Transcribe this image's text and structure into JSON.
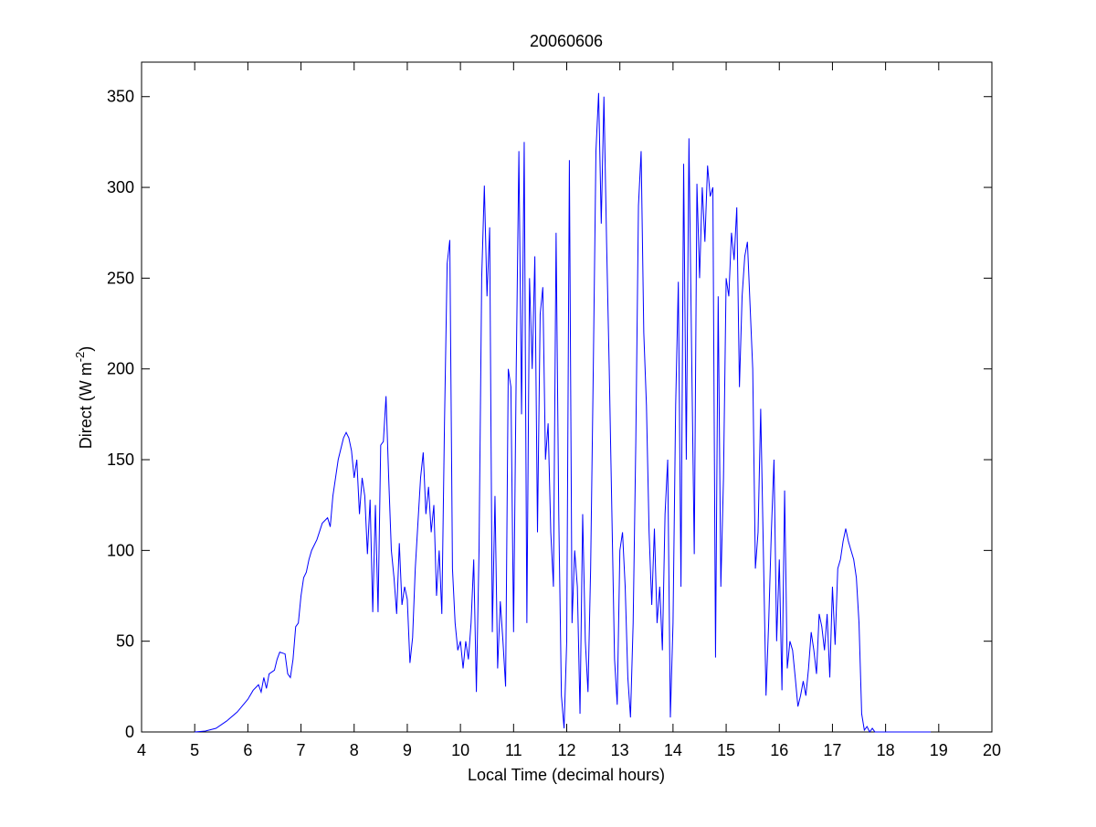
{
  "chart_data": {
    "type": "line",
    "title": "20060606",
    "xlabel": "Local Time (decimal hours)",
    "ylabel": {
      "text": "Direct (W m",
      "superscript": "-2",
      "suffix": ")"
    },
    "color": "#0000ff",
    "xlim": [
      4,
      20
    ],
    "xticks": [
      4,
      5,
      6,
      7,
      8,
      9,
      10,
      11,
      12,
      13,
      14,
      15,
      16,
      17,
      18,
      19,
      20
    ],
    "ylim": [
      0,
      369
    ],
    "yticks": [
      0,
      50,
      100,
      150,
      200,
      250,
      300,
      350
    ],
    "x": [
      5.0,
      5.2,
      5.4,
      5.6,
      5.8,
      6.0,
      6.1,
      6.2,
      6.25,
      6.3,
      6.35,
      6.4,
      6.5,
      6.55,
      6.6,
      6.7,
      6.75,
      6.8,
      6.85,
      6.9,
      6.95,
      7.0,
      7.05,
      7.1,
      7.15,
      7.2,
      7.3,
      7.4,
      7.5,
      7.55,
      7.6,
      7.7,
      7.8,
      7.85,
      7.9,
      7.95,
      8.0,
      8.05,
      8.1,
      8.15,
      8.2,
      8.25,
      8.3,
      8.35,
      8.4,
      8.45,
      8.5,
      8.55,
      8.6,
      8.65,
      8.7,
      8.75,
      8.8,
      8.85,
      8.9,
      8.95,
      9.0,
      9.05,
      9.1,
      9.15,
      9.2,
      9.25,
      9.3,
      9.35,
      9.4,
      9.45,
      9.5,
      9.55,
      9.6,
      9.65,
      9.7,
      9.75,
      9.8,
      9.85,
      9.9,
      9.95,
      10.0,
      10.05,
      10.1,
      10.15,
      10.2,
      10.25,
      10.3,
      10.35,
      10.4,
      10.45,
      10.5,
      10.55,
      10.6,
      10.65,
      10.7,
      10.75,
      10.8,
      10.85,
      10.9,
      10.95,
      11.0,
      11.05,
      11.1,
      11.15,
      11.2,
      11.25,
      11.3,
      11.35,
      11.4,
      11.45,
      11.5,
      11.55,
      11.6,
      11.65,
      11.7,
      11.75,
      11.8,
      11.85,
      11.9,
      11.95,
      12.0,
      12.05,
      12.1,
      12.15,
      12.2,
      12.25,
      12.3,
      12.35,
      12.4,
      12.45,
      12.5,
      12.55,
      12.6,
      12.65,
      12.7,
      12.75,
      12.8,
      12.85,
      12.9,
      12.95,
      13.0,
      13.05,
      13.1,
      13.15,
      13.2,
      13.25,
      13.3,
      13.35,
      13.4,
      13.45,
      13.5,
      13.55,
      13.6,
      13.65,
      13.7,
      13.75,
      13.8,
      13.85,
      13.9,
      13.95,
      14.0,
      14.05,
      14.1,
      14.15,
      14.2,
      14.25,
      14.3,
      14.35,
      14.4,
      14.45,
      14.5,
      14.55,
      14.6,
      14.65,
      14.7,
      14.75,
      14.8,
      14.85,
      14.9,
      14.95,
      15.0,
      15.05,
      15.1,
      15.15,
      15.2,
      15.25,
      15.3,
      15.35,
      15.4,
      15.45,
      15.5,
      15.55,
      15.6,
      15.65,
      15.7,
      15.75,
      15.8,
      15.85,
      15.9,
      15.95,
      16.0,
      16.05,
      16.1,
      16.15,
      16.2,
      16.25,
      16.3,
      16.35,
      16.4,
      16.45,
      16.5,
      16.55,
      16.6,
      16.65,
      16.7,
      16.75,
      16.8,
      16.85,
      16.9,
      16.95,
      17.0,
      17.05,
      17.1,
      17.15,
      17.2,
      17.25,
      17.3,
      17.35,
      17.4,
      17.45,
      17.5,
      17.55,
      17.6,
      17.65,
      17.7,
      17.75,
      17.8,
      18.0,
      18.5,
      18.85
    ],
    "values": [
      0,
      0.5,
      2,
      6,
      11,
      18,
      23,
      26,
      22,
      30,
      24,
      32,
      34,
      40,
      44,
      43,
      32,
      30,
      40,
      58,
      60,
      75,
      85,
      88,
      95,
      100,
      106,
      115,
      118,
      113,
      130,
      150,
      162,
      165,
      162,
      155,
      140,
      150,
      120,
      140,
      130,
      98,
      128,
      66,
      125,
      66,
      158,
      160,
      185,
      140,
      100,
      85,
      65,
      104,
      70,
      80,
      73,
      38,
      52,
      90,
      115,
      140,
      154,
      120,
      135,
      110,
      125,
      75,
      100,
      65,
      170,
      258,
      271,
      90,
      60,
      45,
      50,
      35,
      50,
      40,
      60,
      95,
      22,
      100,
      250,
      301,
      240,
      278,
      55,
      130,
      35,
      72,
      50,
      25,
      200,
      190,
      55,
      200,
      320,
      175,
      325,
      60,
      250,
      200,
      262,
      110,
      230,
      245,
      150,
      170,
      110,
      80,
      275,
      120,
      20,
      2,
      50,
      315,
      60,
      100,
      80,
      10,
      120,
      50,
      22,
      90,
      200,
      320,
      352,
      280,
      350,
      270,
      200,
      120,
      40,
      15,
      100,
      110,
      80,
      30,
      8,
      60,
      160,
      290,
      320,
      220,
      180,
      110,
      70,
      112,
      60,
      80,
      45,
      120,
      150,
      8,
      60,
      180,
      248,
      80,
      313,
      150,
      327,
      210,
      98,
      302,
      250,
      300,
      270,
      312,
      295,
      300,
      41,
      240,
      80,
      140,
      250,
      240,
      275,
      260,
      289,
      190,
      240,
      262,
      270,
      235,
      200,
      90,
      110,
      178,
      100,
      20,
      60,
      110,
      150,
      50,
      95,
      23,
      133,
      35,
      50,
      45,
      30,
      14,
      20,
      28,
      20,
      35,
      55,
      45,
      32,
      65,
      58,
      45,
      65,
      30,
      80,
      48,
      90,
      95,
      105,
      112,
      105,
      100,
      95,
      85,
      60,
      10,
      1,
      3,
      0,
      2,
      0,
      0,
      0,
      0
    ]
  }
}
